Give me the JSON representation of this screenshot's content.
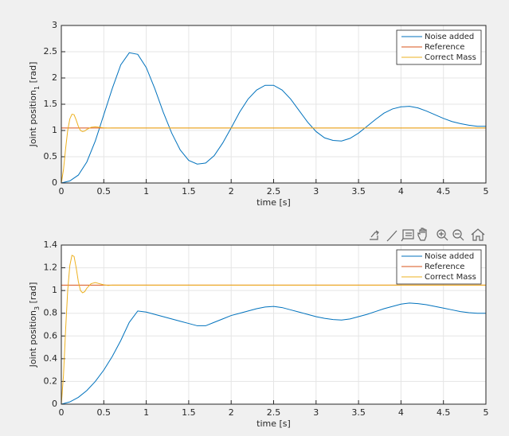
{
  "chart_data": [
    {
      "type": "line",
      "x_label": "time [s]",
      "y_label": [
        "Joint position",
        "1",
        " [rad]"
      ],
      "xlim": [
        0,
        5
      ],
      "xticks": [
        0,
        0.5,
        1,
        1.5,
        2,
        2.5,
        3,
        3.5,
        4,
        4.5,
        5
      ],
      "ylim": [
        0,
        3
      ],
      "yticks": [
        0,
        0.5,
        1,
        1.5,
        2,
        2.5,
        3
      ],
      "grid": true,
      "legend": "northeast",
      "series": [
        {
          "name": "Noise added",
          "color": "#0072bd",
          "x": [
            0,
            0.1,
            0.2,
            0.3,
            0.4,
            0.5,
            0.6,
            0.7,
            0.8,
            0.9,
            1,
            1.1,
            1.2,
            1.3,
            1.4,
            1.5,
            1.6,
            1.7,
            1.8,
            1.9,
            2,
            2.1,
            2.2,
            2.3,
            2.4,
            2.5,
            2.6,
            2.7,
            2.8,
            2.9,
            3,
            3.1,
            3.2,
            3.3,
            3.4,
            3.5,
            3.6,
            3.7,
            3.8,
            3.9,
            4,
            4.1,
            4.2,
            4.3,
            4.4,
            4.5,
            4.6,
            4.7,
            4.8,
            4.9,
            5
          ],
          "values": [
            0,
            0.04,
            0.15,
            0.4,
            0.8,
            1.3,
            1.8,
            2.25,
            2.48,
            2.45,
            2.2,
            1.8,
            1.35,
            0.95,
            0.63,
            0.43,
            0.36,
            0.38,
            0.52,
            0.76,
            1.05,
            1.35,
            1.6,
            1.77,
            1.86,
            1.86,
            1.77,
            1.6,
            1.38,
            1.16,
            0.98,
            0.86,
            0.81,
            0.8,
            0.85,
            0.95,
            1.08,
            1.21,
            1.33,
            1.41,
            1.45,
            1.46,
            1.43,
            1.37,
            1.3,
            1.23,
            1.17,
            1.13,
            1.1,
            1.08,
            1.08
          ]
        },
        {
          "name": "Reference",
          "color": "#d95319",
          "x": [
            0,
            5
          ],
          "values": [
            1.047,
            1.047
          ]
        },
        {
          "name": "Correct Mass",
          "color": "#edb120",
          "x": [
            0,
            0.025,
            0.05,
            0.075,
            0.1,
            0.125,
            0.15,
            0.175,
            0.2,
            0.225,
            0.25,
            0.275,
            0.3,
            0.35,
            0.4,
            0.45,
            0.5,
            0.55,
            0.6,
            5
          ],
          "values": [
            0,
            0.25,
            0.65,
            1.0,
            1.22,
            1.31,
            1.3,
            1.2,
            1.08,
            1.0,
            0.98,
            0.99,
            1.02,
            1.06,
            1.07,
            1.06,
            1.05,
            1.045,
            1.047,
            1.047
          ]
        }
      ]
    },
    {
      "type": "line",
      "x_label": "time [s]",
      "y_label": [
        "Joint position",
        "3",
        " [rad]"
      ],
      "xlim": [
        0,
        5
      ],
      "xticks": [
        0,
        0.5,
        1,
        1.5,
        2,
        2.5,
        3,
        3.5,
        4,
        4.5,
        5
      ],
      "ylim": [
        0,
        1.4
      ],
      "yticks": [
        0,
        0.2,
        0.4,
        0.6,
        0.8,
        1,
        1.2,
        1.4
      ],
      "grid": true,
      "legend": "northeast",
      "series": [
        {
          "name": "Noise added",
          "color": "#0072bd",
          "x": [
            0,
            0.1,
            0.2,
            0.3,
            0.4,
            0.5,
            0.6,
            0.7,
            0.8,
            0.9,
            1,
            1.1,
            1.2,
            1.3,
            1.4,
            1.5,
            1.6,
            1.7,
            1.8,
            1.9,
            2,
            2.1,
            2.2,
            2.3,
            2.4,
            2.5,
            2.6,
            2.7,
            2.8,
            2.9,
            3,
            3.1,
            3.2,
            3.3,
            3.4,
            3.5,
            3.6,
            3.7,
            3.8,
            3.9,
            4,
            4.1,
            4.2,
            4.3,
            4.4,
            4.5,
            4.6,
            4.7,
            4.8,
            4.9,
            5
          ],
          "values": [
            0,
            0.02,
            0.06,
            0.12,
            0.2,
            0.3,
            0.42,
            0.56,
            0.72,
            0.82,
            0.81,
            0.79,
            0.77,
            0.75,
            0.73,
            0.71,
            0.69,
            0.69,
            0.72,
            0.75,
            0.78,
            0.8,
            0.82,
            0.84,
            0.855,
            0.86,
            0.85,
            0.83,
            0.81,
            0.79,
            0.77,
            0.755,
            0.745,
            0.74,
            0.75,
            0.77,
            0.79,
            0.815,
            0.84,
            0.86,
            0.88,
            0.89,
            0.885,
            0.875,
            0.86,
            0.845,
            0.83,
            0.815,
            0.805,
            0.8,
            0.8
          ]
        },
        {
          "name": "Reference",
          "color": "#d95319",
          "x": [
            0,
            5
          ],
          "values": [
            1.047,
            1.047
          ]
        },
        {
          "name": "Correct Mass",
          "color": "#edb120",
          "x": [
            0,
            0.025,
            0.05,
            0.075,
            0.1,
            0.125,
            0.15,
            0.175,
            0.2,
            0.225,
            0.25,
            0.275,
            0.3,
            0.35,
            0.4,
            0.45,
            0.5,
            0.55,
            0.6,
            5
          ],
          "values": [
            0,
            0.25,
            0.65,
            1.0,
            1.22,
            1.31,
            1.3,
            1.2,
            1.08,
            1.0,
            0.98,
            0.99,
            1.02,
            1.06,
            1.07,
            1.06,
            1.05,
            1.045,
            1.047,
            1.047
          ]
        }
      ]
    }
  ]
}
